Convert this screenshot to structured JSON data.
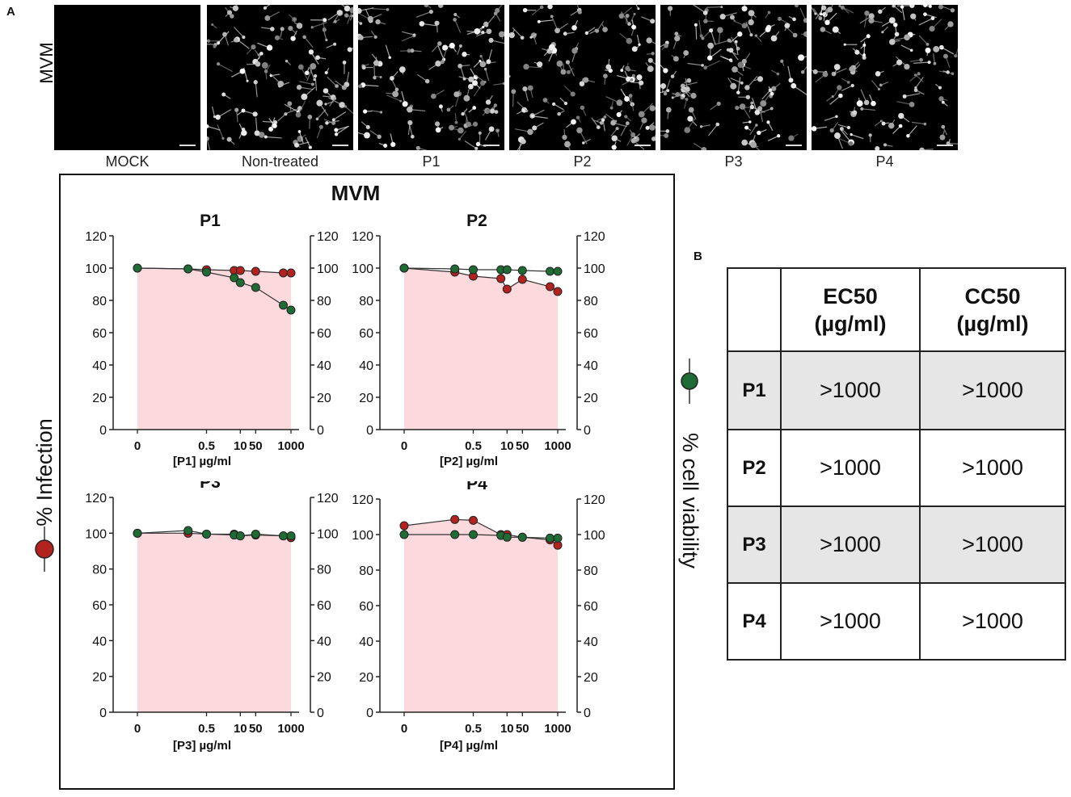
{
  "panels": {
    "a": "A",
    "b": "B"
  },
  "micrographs": {
    "row_label": "MVM",
    "images": [
      {
        "label": "MOCK",
        "blank": true
      },
      {
        "label": "Non-treated",
        "blank": false
      },
      {
        "label": "P1",
        "blank": false
      },
      {
        "label": "P2",
        "blank": false
      },
      {
        "label": "P3",
        "blank": false
      },
      {
        "label": "P4",
        "blank": false
      }
    ]
  },
  "charts_box": {
    "title": "MVM"
  },
  "legend": {
    "infection": "% Infection",
    "viability": "% cell viability"
  },
  "colors": {
    "infection": "#b3221f",
    "viability": "#1f6b34",
    "fill": "#fbd9dc"
  },
  "chart_data": [
    {
      "type": "scatter",
      "title": "P1",
      "xlabel": "[P1] µg/ml",
      "x_tick_labels": [
        "0",
        "0.5",
        "10",
        "50",
        "1000"
      ],
      "x_tick_values": [
        0,
        0.5,
        10,
        50,
        1000
      ],
      "ylim": [
        0,
        120
      ],
      "y_ticks": [
        0,
        20,
        40,
        60,
        80,
        100,
        120
      ],
      "y2lim": [
        0,
        120
      ],
      "series": [
        {
          "key": "infection",
          "x": [
            0,
            0.2,
            0.5,
            5,
            10,
            50,
            500,
            1000
          ],
          "values": [
            100,
            99.5,
            99,
            98.5,
            98.5,
            98,
            97,
            97
          ]
        },
        {
          "key": "viability",
          "x": [
            0,
            0.2,
            0.5,
            5,
            10,
            50,
            500,
            1000
          ],
          "values": [
            100,
            99.5,
            97.5,
            94,
            91,
            88,
            77,
            74
          ]
        }
      ]
    },
    {
      "type": "scatter",
      "title": "P2",
      "xlabel": "[P2] µg/ml",
      "x_tick_labels": [
        "0",
        "0.5",
        "10",
        "50",
        "1000"
      ],
      "x_tick_values": [
        0,
        0.5,
        10,
        50,
        1000
      ],
      "ylim": [
        0,
        120
      ],
      "y_ticks": [
        0,
        20,
        40,
        60,
        80,
        100,
        120
      ],
      "y2lim": [
        0,
        120
      ],
      "series": [
        {
          "key": "infection",
          "x": [
            0,
            0.2,
            0.5,
            5,
            10,
            50,
            500,
            1000
          ],
          "values": [
            100,
            97.5,
            95,
            93.5,
            87,
            93,
            88.5,
            85.5
          ]
        },
        {
          "key": "viability",
          "x": [
            0,
            0.2,
            0.5,
            5,
            10,
            50,
            500,
            1000
          ],
          "values": [
            100,
            99.5,
            99,
            99,
            99,
            98.5,
            98,
            98
          ]
        }
      ]
    },
    {
      "type": "scatter",
      "title": "P3",
      "xlabel": "[P3] µg/ml",
      "x_tick_labels": [
        "0",
        "0.5",
        "10",
        "50",
        "1000"
      ],
      "x_tick_values": [
        0,
        0.5,
        10,
        50,
        1000
      ],
      "ylim": [
        0,
        120
      ],
      "y_ticks": [
        0,
        20,
        40,
        60,
        80,
        100,
        120
      ],
      "y2lim": [
        0,
        120
      ],
      "series": [
        {
          "key": "infection",
          "x": [
            0,
            0.2,
            0.5,
            5,
            10,
            50,
            500,
            1000
          ],
          "values": [
            100,
            100,
            99.5,
            99.5,
            98.5,
            99,
            98.5,
            97.5
          ]
        },
        {
          "key": "viability",
          "x": [
            0,
            0.2,
            0.5,
            5,
            10,
            50,
            500,
            1000
          ],
          "values": [
            100,
            101.5,
            99.5,
            99,
            98.5,
            99.5,
            98.5,
            98.5
          ]
        }
      ]
    },
    {
      "type": "scatter",
      "title": "P4",
      "xlabel": "[P4] µg/ml",
      "x_tick_labels": [
        "0",
        "0.5",
        "10",
        "50",
        "1000"
      ],
      "x_tick_values": [
        0,
        0.5,
        10,
        50,
        1000
      ],
      "ylim": [
        0,
        120
      ],
      "y_ticks": [
        0,
        20,
        40,
        60,
        80,
        100,
        120
      ],
      "y2lim": [
        0,
        120
      ],
      "series": [
        {
          "key": "infection",
          "x": [
            0,
            0.2,
            0.5,
            5,
            10,
            50,
            500,
            1000
          ],
          "values": [
            105,
            108.5,
            108,
            100,
            100,
            98.5,
            97,
            94
          ]
        },
        {
          "key": "viability",
          "x": [
            0,
            0.2,
            0.5,
            5,
            10,
            50,
            500,
            1000
          ],
          "values": [
            100,
            100,
            100,
            99.5,
            98.5,
            98.5,
            98,
            98
          ]
        }
      ]
    }
  ],
  "table": {
    "headers": [
      "",
      "EC50\n(µg/ml)",
      "CC50\n(µg/ml)"
    ],
    "rows": [
      {
        "name": "P1",
        "ec50": ">1000",
        "cc50": ">1000",
        "shaded": true
      },
      {
        "name": "P2",
        "ec50": ">1000",
        "cc50": ">1000",
        "shaded": false
      },
      {
        "name": "P3",
        "ec50": ">1000",
        "cc50": ">1000",
        "shaded": true
      },
      {
        "name": "P4",
        "ec50": ">1000",
        "cc50": ">1000",
        "shaded": false
      }
    ]
  }
}
